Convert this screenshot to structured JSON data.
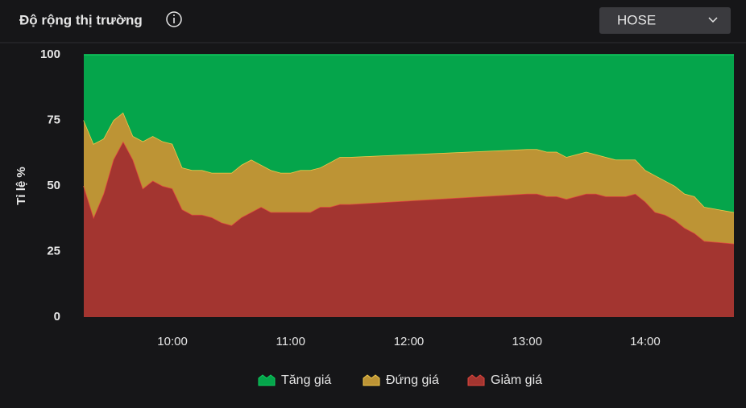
{
  "header": {
    "title": "Độ rộng thị trường",
    "dropdown": "HOSE"
  },
  "chart_data": {
    "type": "stacked-area",
    "ylabel": "Tỉ lệ %",
    "x": [
      "09:15",
      "09:20",
      "09:25",
      "09:30",
      "09:35",
      "09:40",
      "09:45",
      "09:50",
      "09:55",
      "10:00",
      "10:05",
      "10:10",
      "10:15",
      "10:20",
      "10:25",
      "10:30",
      "10:35",
      "10:40",
      "10:45",
      "10:50",
      "10:55",
      "11:00",
      "11:05",
      "11:10",
      "11:15",
      "11:20",
      "11:25",
      "11:30",
      "13:00",
      "13:05",
      "13:10",
      "13:15",
      "13:20",
      "13:25",
      "13:30",
      "13:35",
      "13:40",
      "13:45",
      "13:50",
      "13:55",
      "14:00",
      "14:05",
      "14:10",
      "14:15",
      "14:20",
      "14:25",
      "14:30",
      "14:45"
    ],
    "series": [
      {
        "name": "Tăng giá",
        "color": "#05a54b",
        "line": "#0fd060",
        "values": [
          25,
          34,
          32,
          25,
          22,
          31,
          33,
          31,
          33,
          34,
          43,
          44,
          44,
          45,
          45,
          45,
          42,
          40,
          42,
          44,
          45,
          45,
          44,
          44,
          43,
          41,
          39,
          39,
          36,
          36,
          37,
          37,
          39,
          38,
          37,
          38,
          39,
          40,
          40,
          40,
          44,
          46,
          48,
          50,
          53,
          54,
          58,
          60
        ]
      },
      {
        "name": "Đứng giá",
        "color": "#bd9435",
        "line": "#f3cb4c",
        "values": [
          25,
          28,
          21,
          15,
          11,
          9,
          18,
          17,
          17,
          17,
          16,
          17,
          17,
          17,
          19,
          20,
          20,
          20,
          16,
          16,
          15,
          15,
          16,
          16,
          15,
          17,
          18,
          18,
          17,
          17,
          17,
          17,
          16,
          16,
          16,
          15,
          15,
          14,
          14,
          13,
          12,
          14,
          13,
          13,
          13,
          14,
          13,
          12
        ]
      },
      {
        "name": "Giảm giá",
        "color": "#a33530",
        "line": "#e2463e",
        "values": [
          50,
          38,
          47,
          60,
          67,
          60,
          49,
          52,
          50,
          49,
          41,
          39,
          39,
          38,
          36,
          35,
          38,
          40,
          42,
          40,
          40,
          40,
          40,
          40,
          42,
          42,
          43,
          43,
          47,
          47,
          46,
          46,
          45,
          46,
          47,
          47,
          46,
          46,
          46,
          47,
          44,
          40,
          39,
          37,
          34,
          32,
          29,
          28
        ]
      }
    ],
    "xlim": [
      "09:15",
      "14:45"
    ],
    "xticks": [
      "10:00",
      "11:00",
      "12:00",
      "13:00",
      "14:00"
    ],
    "ylim": [
      0,
      100
    ],
    "yticks": [
      0,
      25,
      50,
      75,
      100
    ]
  }
}
